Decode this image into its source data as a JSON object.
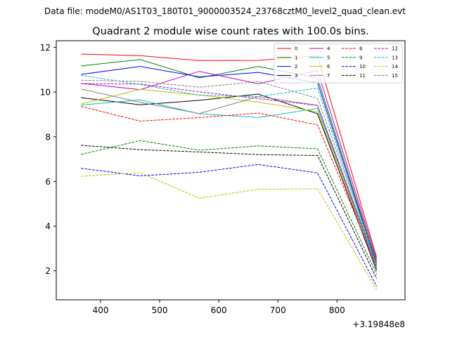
{
  "chart_data": {
    "type": "line",
    "suptitle": "Data file: modeM0/AS1T03_180T01_9000003524_23768cztM0_level2_quad_clean.evt",
    "title": "Quadrant 2 module wise count rates with 100.0s bins.",
    "xlabel": "",
    "ylabel": "",
    "x_offset_label": "+3.19848e8",
    "x": [
      367,
      467,
      567,
      667,
      767,
      867
    ],
    "xlim": [
      325,
      915
    ],
    "ylim": [
      0.7,
      12.3
    ],
    "xticks": [
      400,
      500,
      600,
      700,
      800
    ],
    "yticks": [
      2,
      4,
      6,
      8,
      10,
      12
    ],
    "legend_position": "top-right",
    "series": [
      {
        "name": "0",
        "color": "#ff0000",
        "dash": "solid",
        "values": [
          11.7,
          11.63,
          11.41,
          11.42,
          11.62,
          2.6
        ]
      },
      {
        "name": "1",
        "color": "#008000",
        "dash": "solid",
        "values": [
          11.17,
          11.46,
          10.64,
          11.15,
          10.62,
          2.38
        ]
      },
      {
        "name": "2",
        "color": "#0000ff",
        "dash": "solid",
        "values": [
          10.79,
          11.15,
          10.68,
          10.88,
          10.42,
          2.3
        ]
      },
      {
        "name": "3",
        "color": "#000000",
        "dash": "solid",
        "values": [
          9.75,
          9.43,
          9.63,
          9.91,
          9.03,
          2.0
        ]
      },
      {
        "name": "4",
        "color": "#c000c0",
        "dash": "solid",
        "values": [
          10.39,
          10.11,
          10.93,
          10.37,
          10.96,
          2.5
        ]
      },
      {
        "name": "5",
        "color": "#00bfbf",
        "dash": "solid",
        "values": [
          9.42,
          9.65,
          9.03,
          8.86,
          9.27,
          2.25
        ]
      },
      {
        "name": "6",
        "color": "#bfbf00",
        "dash": "solid",
        "values": [
          9.47,
          10.12,
          9.87,
          9.55,
          9.12,
          2.15
        ]
      },
      {
        "name": "7",
        "color": "#808080",
        "dash": "solid",
        "values": [
          10.14,
          9.54,
          9.04,
          9.8,
          9.41,
          2.3
        ]
      },
      {
        "name": "8",
        "color": "#ff0000",
        "dash": "dashed",
        "values": [
          9.36,
          8.7,
          8.86,
          9.06,
          8.53,
          2.2
        ]
      },
      {
        "name": "9",
        "color": "#008000",
        "dash": "dashed",
        "values": [
          7.21,
          7.83,
          7.4,
          7.59,
          7.46,
          1.85
        ]
      },
      {
        "name": "10",
        "color": "#0000ff",
        "dash": "dashed",
        "values": [
          6.59,
          6.25,
          6.41,
          6.76,
          6.38,
          1.3
        ]
      },
      {
        "name": "11",
        "color": "#000000",
        "dash": "dashed",
        "values": [
          7.62,
          7.42,
          7.32,
          7.2,
          7.16,
          1.65
        ]
      },
      {
        "name": "12",
        "color": "#c000c0",
        "dash": "dashed",
        "values": [
          10.38,
          10.36,
          10.01,
          9.71,
          9.4,
          2.1
        ]
      },
      {
        "name": "13",
        "color": "#00bfbf",
        "dash": "dashed",
        "values": [
          10.75,
          10.34,
          9.86,
          9.8,
          10.18,
          2.2
        ]
      },
      {
        "name": "14",
        "color": "#bfbf00",
        "dash": "dashed",
        "values": [
          6.23,
          6.39,
          5.25,
          5.65,
          5.67,
          1.15
        ]
      },
      {
        "name": "15",
        "color": "#808080",
        "dash": "dashed",
        "values": [
          10.53,
          10.48,
          10.22,
          10.47,
          9.72,
          2.45
        ]
      }
    ]
  }
}
